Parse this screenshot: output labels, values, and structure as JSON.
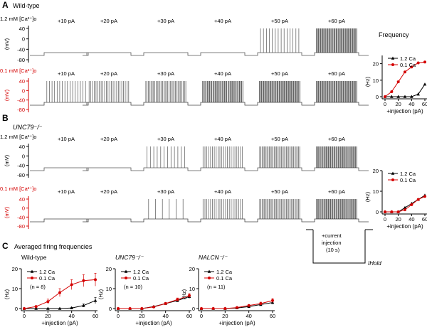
{
  "panels": {
    "A": {
      "letter": "A",
      "title": "Wild-type",
      "rows": [
        {
          "label": "1.2 mM [Ca²⁺]o",
          "color": "#000000",
          "yticks": [
            "40",
            "0",
            "-40",
            "-80"
          ],
          "unit": "(mV)",
          "steps": [
            "+10 pA",
            "+20 pA",
            "+30 pA",
            "+40 pA",
            "+50 pA",
            "+60 pA"
          ],
          "firing": [
            0,
            0,
            0,
            0,
            0.35,
            1.0
          ]
        },
        {
          "label": "0.1 mM [Ca²⁺]o",
          "color": "#d40000",
          "yticks": [
            "40",
            "0",
            "-40",
            "-80"
          ],
          "unit": "(mV)",
          "steps": [
            "+10 pA",
            "+20 pA",
            "+30 pA",
            "+40 pA",
            "+50 pA",
            "+60 pA"
          ],
          "firing": [
            0.4,
            0.6,
            0.8,
            0.9,
            1.0,
            1.0
          ]
        }
      ],
      "freq_title": "Frequency"
    },
    "B": {
      "letter": "B",
      "title": "UNC79⁻/⁻",
      "rows": [
        {
          "label": "1.2 mM [Ca²⁺]o",
          "color": "#000000",
          "yticks": [
            "40",
            "0",
            "-40",
            "-80"
          ],
          "unit": "(mV)",
          "steps": [
            "+10 pA",
            "+20 pA",
            "+30 pA",
            "+40 pA",
            "+50 pA",
            "+60 pA"
          ],
          "firing": [
            0,
            0,
            0.3,
            0.55,
            0.85,
            0.95
          ]
        },
        {
          "label": "0.1 mM [Ca²⁺]o",
          "color": "#d40000",
          "yticks": [
            "40",
            "0",
            "-40",
            "-80"
          ],
          "unit": "(mV)",
          "steps": [
            "+10 pA",
            "+20 pA",
            "+30 pA",
            "+40 pA",
            "+50 pA",
            "+60 pA"
          ],
          "firing": [
            0,
            0,
            0.15,
            0.55,
            0.85,
            0.95
          ]
        }
      ]
    },
    "C": {
      "letter": "C",
      "title": "Averaged firing frequencies"
    }
  },
  "protocol": {
    "line1": "+current",
    "line2": "injection",
    "line3": "(10 s)",
    "hold": "IHold"
  },
  "chart_data": [
    {
      "id": "A-frequency",
      "type": "line",
      "xlabel": "+injection (pA)",
      "ylabel": "(Hz)",
      "xlim": [
        0,
        60
      ],
      "ylim": [
        0,
        25
      ],
      "xticks": [
        0,
        20,
        40,
        60
      ],
      "yticks": [
        0,
        10,
        20
      ],
      "legend": "top-left",
      "x": [
        0,
        10,
        20,
        30,
        40,
        50,
        60
      ],
      "series": [
        {
          "name": "1.2 Ca",
          "color": "#000000",
          "marker": "triangle",
          "values": [
            0,
            0,
            0,
            0,
            0,
            1.5,
            7.5
          ]
        },
        {
          "name": "0.1 Ca",
          "color": "#d40000",
          "marker": "circle",
          "values": [
            0,
            3,
            9,
            15,
            18,
            20.5,
            21
          ]
        }
      ]
    },
    {
      "id": "B-frequency",
      "type": "line",
      "xlabel": "+injection (pA)",
      "ylabel": "(Hz)",
      "xlim": [
        0,
        60
      ],
      "ylim": [
        0,
        20
      ],
      "xticks": [
        0,
        20,
        40,
        60
      ],
      "yticks": [
        0,
        10,
        20
      ],
      "legend": "top-left",
      "x": [
        0,
        10,
        20,
        30,
        40,
        50,
        60
      ],
      "series": [
        {
          "name": "1.2 Ca",
          "color": "#000000",
          "marker": "triangle",
          "values": [
            0,
            0,
            0,
            2,
            4,
            6,
            8
          ]
        },
        {
          "name": "0.1 Ca",
          "color": "#d40000",
          "marker": "circle",
          "values": [
            0,
            0,
            0,
            1,
            3.5,
            6,
            7.5
          ]
        }
      ]
    },
    {
      "id": "C-wildtype",
      "type": "line",
      "title": "Wild-type",
      "xlabel": "+injection (pA)",
      "ylabel": "(Hz)",
      "xlim": [
        0,
        60
      ],
      "ylim": [
        0,
        20
      ],
      "xticks": [
        0,
        20,
        40,
        60
      ],
      "yticks": [
        0,
        10,
        20
      ],
      "legend": "top-left",
      "annotation": "(n = 8)",
      "x": [
        0,
        10,
        20,
        30,
        40,
        50,
        60
      ],
      "series": [
        {
          "name": "1.2 Ca",
          "color": "#000000",
          "marker": "triangle",
          "values": [
            0,
            0,
            0,
            0,
            0.3,
            1.5,
            4
          ],
          "errors": [
            0,
            0,
            0,
            0,
            0.3,
            0.8,
            1.5
          ]
        },
        {
          "name": "0.1 Ca",
          "color": "#d40000",
          "marker": "circle",
          "values": [
            0,
            1,
            3.5,
            8,
            12,
            14,
            14.5
          ],
          "errors": [
            0,
            0.5,
            1.2,
            2,
            2.5,
            3,
            3.2
          ]
        }
      ]
    },
    {
      "id": "C-unc79",
      "type": "line",
      "title": "UNC79⁻/⁻",
      "xlabel": "+injection (pA)",
      "ylabel": "(Hz)",
      "xlim": [
        0,
        60
      ],
      "ylim": [
        0,
        20
      ],
      "xticks": [
        0,
        20,
        40,
        60
      ],
      "yticks": [
        0,
        10,
        20
      ],
      "legend": "top-left",
      "annotation": "(n = 10)",
      "x": [
        0,
        10,
        20,
        30,
        40,
        50,
        60
      ],
      "series": [
        {
          "name": "1.2 Ca",
          "color": "#000000",
          "marker": "triangle",
          "values": [
            0,
            0,
            0,
            1,
            2.5,
            4,
            6
          ],
          "errors": [
            0,
            0,
            0,
            0.3,
            0.5,
            0.7,
            0.9
          ]
        },
        {
          "name": "0.1 Ca",
          "color": "#d40000",
          "marker": "circle",
          "values": [
            0,
            0,
            0,
            0.8,
            2.5,
            4.5,
            6.5
          ],
          "errors": [
            0,
            0,
            0,
            0.3,
            0.5,
            0.8,
            1.0
          ]
        }
      ]
    },
    {
      "id": "C-nalcn",
      "type": "line",
      "title": "NALCN⁻/⁻",
      "xlabel": "+injection (pA)",
      "ylabel": "(Hz)",
      "xlim": [
        0,
        60
      ],
      "ylim": [
        0,
        20
      ],
      "xticks": [
        0,
        20,
        40,
        60
      ],
      "yticks": [
        0,
        10,
        20
      ],
      "legend": "top-left",
      "annotation": "(n = 11)",
      "x": [
        0,
        10,
        20,
        30,
        40,
        50,
        60
      ],
      "series": [
        {
          "name": "1.2 Ca",
          "color": "#000000",
          "marker": "triangle",
          "values": [
            0,
            0,
            0,
            0.3,
            1,
            2,
            3
          ],
          "errors": [
            0,
            0,
            0,
            0.2,
            0.4,
            0.6,
            0.8
          ]
        },
        {
          "name": "0.1 Ca",
          "color": "#d40000",
          "marker": "circle",
          "values": [
            0,
            0,
            0,
            0.5,
            1.5,
            2.5,
            4
          ],
          "errors": [
            0,
            0,
            0,
            0.3,
            0.5,
            0.7,
            1.0
          ]
        }
      ]
    }
  ]
}
